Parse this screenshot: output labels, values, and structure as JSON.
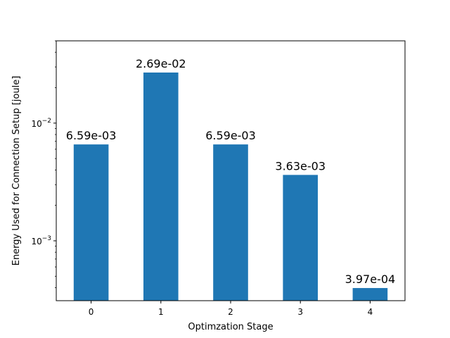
{
  "chart_data": {
    "type": "bar",
    "title": "",
    "xlabel": "Optimzation Stage",
    "ylabel": "Energy Used for Connection Setup [joule]",
    "yscale": "log",
    "ylim": [
      0.00031,
      0.05
    ],
    "grid": false,
    "bar_color": "#1f77b4",
    "categories": [
      "0",
      "1",
      "2",
      "3",
      "4"
    ],
    "values": [
      0.00659,
      0.0269,
      0.00659,
      0.00363,
      0.000397
    ],
    "data_labels": [
      "6.59e-03",
      "2.69e-02",
      "6.59e-03",
      "3.63e-03",
      "3.97e-04"
    ],
    "yticks": [
      {
        "value": 0.01,
        "base": "10",
        "exp": "−2"
      },
      {
        "value": 0.001,
        "base": "10",
        "exp": "−3"
      }
    ]
  }
}
